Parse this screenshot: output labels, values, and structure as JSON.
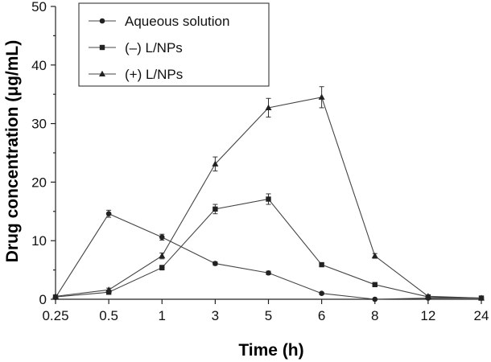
{
  "chart_data": {
    "type": "line",
    "xlabel": "Time (h)",
    "ylabel": "Drug concentration (μg/mL)",
    "categories": [
      "0.25",
      "0.5",
      "1",
      "3",
      "5",
      "6",
      "8",
      "12",
      "24"
    ],
    "ylim": [
      0,
      50
    ],
    "yticks": [
      0,
      10,
      20,
      30,
      40,
      50
    ],
    "grid": false,
    "legend_position": "top-left",
    "series": [
      {
        "name": "Aqueous solution",
        "marker": "circle",
        "values": [
          0.3,
          14.6,
          10.6,
          6.1,
          4.5,
          1.0,
          0.0,
          0.2,
          0.2
        ],
        "errors": [
          0.2,
          0.6,
          0.5,
          0.3,
          0.3,
          0.2,
          0.1,
          0.1,
          0.1
        ]
      },
      {
        "name": "(–) L/NPs",
        "marker": "square",
        "values": [
          0.4,
          1.2,
          5.4,
          15.4,
          17.1,
          5.9,
          2.5,
          0.4,
          0.2
        ],
        "errors": [
          0.2,
          0.3,
          0.4,
          0.8,
          0.9,
          0.3,
          0.2,
          0.1,
          0.1
        ]
      },
      {
        "name": "(+) L/NPs",
        "marker": "triangle",
        "values": [
          0.5,
          1.6,
          7.4,
          23.1,
          32.7,
          34.5,
          7.4,
          0.5,
          0.2
        ],
        "errors": [
          0.2,
          0.3,
          0.5,
          1.2,
          1.6,
          1.8,
          0.4,
          0.1,
          0.1
        ]
      }
    ]
  }
}
